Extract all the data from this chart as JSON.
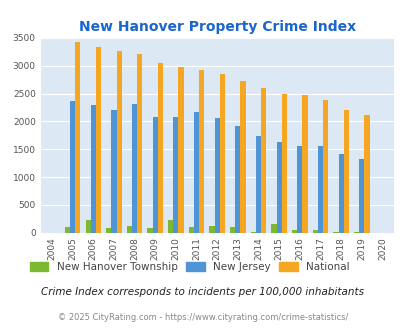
{
  "title": "New Hanover Property Crime Index",
  "years": [
    2004,
    2005,
    2006,
    2007,
    2008,
    2009,
    2010,
    2011,
    2012,
    2013,
    2014,
    2015,
    2016,
    2017,
    2018,
    2019,
    2020
  ],
  "new_hanover": [
    0,
    105,
    235,
    80,
    115,
    90,
    230,
    95,
    125,
    100,
    20,
    155,
    45,
    40,
    20,
    15,
    0
  ],
  "new_jersey": [
    0,
    2360,
    2290,
    2210,
    2310,
    2075,
    2075,
    2160,
    2055,
    1910,
    1735,
    1625,
    1560,
    1560,
    1415,
    1320,
    0
  ],
  "national": [
    0,
    3425,
    3345,
    3270,
    3215,
    3055,
    2975,
    2925,
    2860,
    2730,
    2600,
    2500,
    2475,
    2380,
    2210,
    2120,
    0
  ],
  "nht_color": "#7db832",
  "nj_color": "#4f94d4",
  "nat_color": "#f5a623",
  "bg_color": "#dce9f5",
  "title_color": "#1a66cc",
  "legend_labels": [
    "New Hanover Township",
    "New Jersey",
    "National"
  ],
  "footnote1": "Crime Index corresponds to incidents per 100,000 inhabitants",
  "footnote2": "© 2025 CityRating.com - https://www.cityrating.com/crime-statistics/",
  "ylim": [
    0,
    3500
  ],
  "bar_width": 0.25
}
